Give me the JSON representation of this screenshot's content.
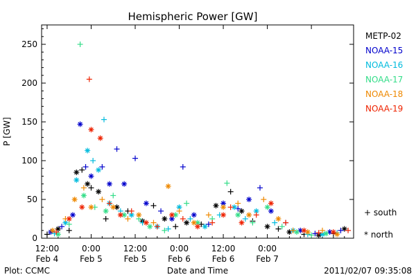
{
  "chart_data": {
    "type": "scatter",
    "title": "Hemispheric Power [GW]",
    "xlabel": "Date and Time",
    "ylabel": "P [GW]",
    "ylim": [
      0,
      275
    ],
    "yticks": [
      0,
      50,
      100,
      150,
      200,
      250
    ],
    "xlim_hours": [
      -1.5,
      83.5
    ],
    "x_tick_hours": [
      0,
      12,
      24,
      36,
      48,
      60,
      72
    ],
    "x_tick_labels": [
      {
        "time": "12:00",
        "date": "Feb 4"
      },
      {
        "time": "0:00",
        "date": "Feb 5"
      },
      {
        "time": "12:00",
        "date": "Feb 5"
      },
      {
        "time": "0:00",
        "date": "Feb 6"
      },
      {
        "time": "12:00",
        "date": "Feb 6"
      },
      {
        "time": "0:00",
        "date": "Feb 7"
      },
      {
        "time": "",
        "date": ""
      }
    ],
    "grid": false,
    "legend_placement": "right",
    "marker_legend": {
      "south": "+ south",
      "north": "* north"
    },
    "series": [
      {
        "name": "METP-02",
        "color": "#000000",
        "points": [
          {
            "x": 0,
            "y": 5,
            "m": "+"
          },
          {
            "x": 3,
            "y": 12,
            "m": "*"
          },
          {
            "x": 6,
            "y": 10,
            "m": "+"
          },
          {
            "x": 8,
            "y": 85,
            "m": "*"
          },
          {
            "x": 9.5,
            "y": 88,
            "m": "+"
          },
          {
            "x": 11,
            "y": 70,
            "m": "*"
          },
          {
            "x": 12,
            "y": 65,
            "m": "+"
          },
          {
            "x": 14,
            "y": 60,
            "m": "*"
          },
          {
            "x": 16,
            "y": 25,
            "m": "+"
          },
          {
            "x": 19,
            "y": 40,
            "m": "*"
          },
          {
            "x": 22,
            "y": 35,
            "m": "+"
          },
          {
            "x": 26,
            "y": 22,
            "m": "*"
          },
          {
            "x": 29,
            "y": 42,
            "m": "+"
          },
          {
            "x": 32,
            "y": 25,
            "m": "*"
          },
          {
            "x": 35,
            "y": 15,
            "m": "+"
          },
          {
            "x": 38,
            "y": 20,
            "m": "*"
          },
          {
            "x": 42,
            "y": 18,
            "m": "+"
          },
          {
            "x": 46,
            "y": 42,
            "m": "*"
          },
          {
            "x": 50,
            "y": 60,
            "m": "+"
          },
          {
            "x": 53,
            "y": 35,
            "m": "*"
          },
          {
            "x": 56,
            "y": 22,
            "m": "+"
          },
          {
            "x": 60,
            "y": 15,
            "m": "*"
          },
          {
            "x": 63,
            "y": 12,
            "m": "+"
          },
          {
            "x": 66,
            "y": 8,
            "m": "*"
          },
          {
            "x": 70,
            "y": 5,
            "m": "+"
          },
          {
            "x": 74,
            "y": 4,
            "m": "*"
          },
          {
            "x": 78,
            "y": 6,
            "m": "+"
          },
          {
            "x": 81,
            "y": 12,
            "m": "*"
          }
        ]
      },
      {
        "name": "NOAA-15",
        "color": "#0000cc",
        "points": [
          {
            "x": 1,
            "y": 8,
            "m": "*"
          },
          {
            "x": 4,
            "y": 15,
            "m": "+"
          },
          {
            "x": 7,
            "y": 30,
            "m": "*"
          },
          {
            "x": 9,
            "y": 147,
            "m": "*"
          },
          {
            "x": 10.5,
            "y": 92,
            "m": "+"
          },
          {
            "x": 12,
            "y": 80,
            "m": "*"
          },
          {
            "x": 15,
            "y": 92,
            "m": "+"
          },
          {
            "x": 17,
            "y": 70,
            "m": "*"
          },
          {
            "x": 19,
            "y": 115,
            "m": "+"
          },
          {
            "x": 21,
            "y": 70,
            "m": "*"
          },
          {
            "x": 24,
            "y": 103,
            "m": "+"
          },
          {
            "x": 27,
            "y": 45,
            "m": "*"
          },
          {
            "x": 31,
            "y": 35,
            "m": "+"
          },
          {
            "x": 34,
            "y": 25,
            "m": "*"
          },
          {
            "x": 37,
            "y": 92,
            "m": "+"
          },
          {
            "x": 40,
            "y": 30,
            "m": "*"
          },
          {
            "x": 44,
            "y": 18,
            "m": "+"
          },
          {
            "x": 48,
            "y": 45,
            "m": "*"
          },
          {
            "x": 52,
            "y": 38,
            "m": "+"
          },
          {
            "x": 55,
            "y": 50,
            "m": "*"
          },
          {
            "x": 58,
            "y": 65,
            "m": "+"
          },
          {
            "x": 61,
            "y": 35,
            "m": "*"
          },
          {
            "x": 65,
            "y": 20,
            "m": "+"
          },
          {
            "x": 69,
            "y": 10,
            "m": "*"
          },
          {
            "x": 73,
            "y": 6,
            "m": "+"
          },
          {
            "x": 77,
            "y": 8,
            "m": "*"
          },
          {
            "x": 80,
            "y": 10,
            "m": "+"
          }
        ]
      },
      {
        "name": "NOAA-16",
        "color": "#00bbdd",
        "points": [
          {
            "x": 2,
            "y": 6,
            "m": "+"
          },
          {
            "x": 5,
            "y": 20,
            "m": "*"
          },
          {
            "x": 8,
            "y": 75,
            "m": "*"
          },
          {
            "x": 11,
            "y": 113,
            "m": "*"
          },
          {
            "x": 12.5,
            "y": 100,
            "m": "+"
          },
          {
            "x": 14,
            "y": 88,
            "m": "*"
          },
          {
            "x": 15.5,
            "y": 153,
            "m": "+"
          },
          {
            "x": 17,
            "y": 45,
            "m": "*"
          },
          {
            "x": 20,
            "y": 35,
            "m": "+"
          },
          {
            "x": 23,
            "y": 30,
            "m": "*"
          },
          {
            "x": 26,
            "y": 20,
            "m": "+"
          },
          {
            "x": 30,
            "y": 15,
            "m": "*"
          },
          {
            "x": 33,
            "y": 12,
            "m": "+"
          },
          {
            "x": 36,
            "y": 40,
            "m": "*"
          },
          {
            "x": 39,
            "y": 25,
            "m": "+"
          },
          {
            "x": 43,
            "y": 15,
            "m": "*"
          },
          {
            "x": 47,
            "y": 30,
            "m": "+"
          },
          {
            "x": 51,
            "y": 40,
            "m": "*"
          },
          {
            "x": 54,
            "y": 25,
            "m": "+"
          },
          {
            "x": 57,
            "y": 35,
            "m": "*"
          },
          {
            "x": 62,
            "y": 20,
            "m": "+"
          },
          {
            "x": 67,
            "y": 10,
            "m": "*"
          },
          {
            "x": 71,
            "y": 5,
            "m": "+"
          },
          {
            "x": 75,
            "y": 5,
            "m": "*"
          },
          {
            "x": 79,
            "y": 7,
            "m": "+"
          }
        ]
      },
      {
        "name": "NOAA-17",
        "color": "#33dd88",
        "points": [
          {
            "x": 3,
            "y": 5,
            "m": "*"
          },
          {
            "x": 6,
            "y": 18,
            "m": "+"
          },
          {
            "x": 9,
            "y": 250,
            "m": "+"
          },
          {
            "x": 10,
            "y": 55,
            "m": "*"
          },
          {
            "x": 13,
            "y": 40,
            "m": "+"
          },
          {
            "x": 16,
            "y": 35,
            "m": "*"
          },
          {
            "x": 18,
            "y": 55,
            "m": "+"
          },
          {
            "x": 21,
            "y": 30,
            "m": "*"
          },
          {
            "x": 25,
            "y": 25,
            "m": "+"
          },
          {
            "x": 28,
            "y": 15,
            "m": "*"
          },
          {
            "x": 32,
            "y": 10,
            "m": "+"
          },
          {
            "x": 35,
            "y": 30,
            "m": "*"
          },
          {
            "x": 38,
            "y": 45,
            "m": "+"
          },
          {
            "x": 41,
            "y": 20,
            "m": "*"
          },
          {
            "x": 45,
            "y": 25,
            "m": "+"
          },
          {
            "x": 49,
            "y": 71,
            "m": "+"
          },
          {
            "x": 52,
            "y": 30,
            "m": "*"
          },
          {
            "x": 56,
            "y": 20,
            "m": "+"
          },
          {
            "x": 60,
            "y": 40,
            "m": "*"
          },
          {
            "x": 64,
            "y": 15,
            "m": "+"
          },
          {
            "x": 68,
            "y": 8,
            "m": "*"
          },
          {
            "x": 72,
            "y": 4,
            "m": "+"
          },
          {
            "x": 76,
            "y": 6,
            "m": "*"
          }
        ]
      },
      {
        "name": "NOAA-18",
        "color": "#ee8800",
        "points": [
          {
            "x": 1.5,
            "y": 10,
            "m": "*"
          },
          {
            "x": 5,
            "y": 25,
            "m": "+"
          },
          {
            "x": 7.5,
            "y": 50,
            "m": "*"
          },
          {
            "x": 10,
            "y": 65,
            "m": "+"
          },
          {
            "x": 12,
            "y": 40,
            "m": "*"
          },
          {
            "x": 15,
            "y": 50,
            "m": "+"
          },
          {
            "x": 18,
            "y": 40,
            "m": "*"
          },
          {
            "x": 22,
            "y": 25,
            "m": "+"
          },
          {
            "x": 25,
            "y": 30,
            "m": "*"
          },
          {
            "x": 29,
            "y": 20,
            "m": "+"
          },
          {
            "x": 33,
            "y": 67,
            "m": "*"
          },
          {
            "x": 36,
            "y": 35,
            "m": "+"
          },
          {
            "x": 40,
            "y": 20,
            "m": "*"
          },
          {
            "x": 44,
            "y": 30,
            "m": "+"
          },
          {
            "x": 48,
            "y": 40,
            "m": "*"
          },
          {
            "x": 52,
            "y": 45,
            "m": "+"
          },
          {
            "x": 55,
            "y": 30,
            "m": "*"
          },
          {
            "x": 59,
            "y": 50,
            "m": "+"
          },
          {
            "x": 63,
            "y": 25,
            "m": "*"
          },
          {
            "x": 67,
            "y": 10,
            "m": "+"
          },
          {
            "x": 71,
            "y": 8,
            "m": "*"
          },
          {
            "x": 75,
            "y": 10,
            "m": "+"
          },
          {
            "x": 79,
            "y": 5,
            "m": "*"
          }
        ]
      },
      {
        "name": "NOAA-19",
        "color": "#ee2200",
        "points": [
          {
            "x": 2.5,
            "y": 8,
            "m": "+"
          },
          {
            "x": 6,
            "y": 25,
            "m": "*"
          },
          {
            "x": 9.5,
            "y": 40,
            "m": "*"
          },
          {
            "x": 11.5,
            "y": 205,
            "m": "+"
          },
          {
            "x": 12,
            "y": 140,
            "m": "*"
          },
          {
            "x": 14.5,
            "y": 129,
            "m": "*"
          },
          {
            "x": 17,
            "y": 45,
            "m": "+"
          },
          {
            "x": 20,
            "y": 30,
            "m": "*"
          },
          {
            "x": 23,
            "y": 35,
            "m": "+"
          },
          {
            "x": 27,
            "y": 20,
            "m": "*"
          },
          {
            "x": 30,
            "y": 15,
            "m": "+"
          },
          {
            "x": 34,
            "y": 30,
            "m": "*"
          },
          {
            "x": 37,
            "y": 25,
            "m": "+"
          },
          {
            "x": 41,
            "y": 15,
            "m": "*"
          },
          {
            "x": 45,
            "y": 20,
            "m": "+"
          },
          {
            "x": 48,
            "y": 30,
            "m": "*"
          },
          {
            "x": 50,
            "y": 40,
            "m": "+"
          },
          {
            "x": 53,
            "y": 20,
            "m": "*"
          },
          {
            "x": 57,
            "y": 30,
            "m": "+"
          },
          {
            "x": 61,
            "y": 45,
            "m": "*"
          },
          {
            "x": 65,
            "y": 20,
            "m": "+"
          },
          {
            "x": 70,
            "y": 10,
            "m": "*"
          },
          {
            "x": 74,
            "y": 7,
            "m": "+"
          },
          {
            "x": 78,
            "y": 8,
            "m": "*"
          },
          {
            "x": 82,
            "y": 10,
            "m": "+"
          }
        ]
      }
    ]
  },
  "footer": {
    "plot_credit": "Plot: CCMC",
    "timestamp": "2011/02/07 09:35:08"
  }
}
